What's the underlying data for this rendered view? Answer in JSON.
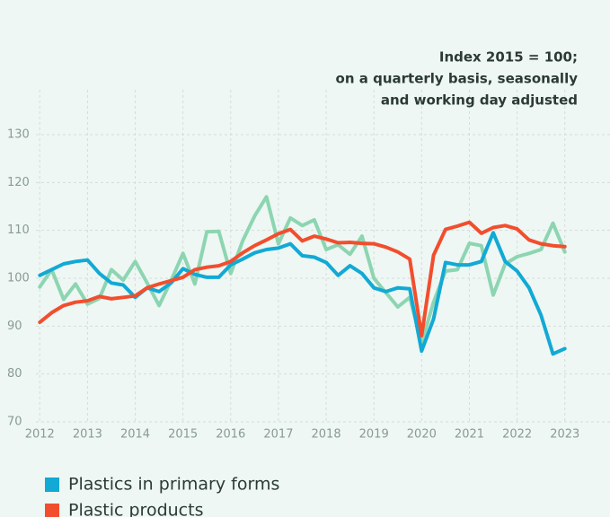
{
  "chart_data": {
    "type": "line",
    "annotation": [
      "Index 2015 = 100;",
      "on a quarterly basis, seasonally",
      "and working day adjusted"
    ],
    "x": [
      2012,
      2012.25,
      2012.5,
      2012.75,
      2013,
      2013.25,
      2013.5,
      2013.75,
      2014,
      2014.25,
      2014.5,
      2014.75,
      2015,
      2015.25,
      2015.5,
      2015.75,
      2016,
      2016.25,
      2016.5,
      2016.75,
      2017,
      2017.25,
      2017.5,
      2017.75,
      2018,
      2018.25,
      2018.5,
      2018.75,
      2019,
      2019.25,
      2019.5,
      2019.75,
      2020,
      2020.25,
      2020.5,
      2020.75,
      2021,
      2021.25,
      2021.5,
      2021.75,
      2022,
      2022.25,
      2022.5,
      2022.75,
      2023
    ],
    "series": [
      {
        "color": "#8dd5b2",
        "values": [
          98.2,
          101.8,
          95.6,
          98.8,
          94.6,
          95.8,
          101.8,
          99.6,
          103.5,
          99,
          94.3,
          99.5,
          105.2,
          98.8,
          109.7,
          109.8,
          101,
          107.8,
          113,
          117,
          107.2,
          112.6,
          111,
          112.2,
          106,
          107,
          105,
          108.8,
          100,
          97,
          94,
          96,
          86.5,
          95,
          101.5,
          101.8,
          107.3,
          106.8,
          96.5,
          103,
          104.5,
          105.2,
          106,
          111.5,
          105.5
        ]
      },
      {
        "name": "Plastics in primary forms",
        "color": "#12a9d5",
        "values": [
          100.6,
          101.8,
          103,
          103.5,
          103.8,
          101,
          99,
          98.6,
          96,
          98,
          97.2,
          99,
          102,
          100.8,
          100.2,
          100.2,
          102.8,
          104,
          105.3,
          106,
          106.3,
          107.2,
          104.7,
          104.4,
          103.3,
          100.6,
          102.6,
          101,
          98,
          97.2,
          98,
          97.8,
          84.8,
          91.5,
          103.3,
          102.8,
          102.8,
          103.5,
          109.5,
          103.5,
          101.5,
          98,
          92.3,
          84.2,
          85.3
        ]
      },
      {
        "name": "Plastic products",
        "color": "#f24e2e",
        "values": [
          90.8,
          92.8,
          94.3,
          95,
          95.3,
          96.2,
          95.7,
          96,
          96.3,
          98,
          98.8,
          99.5,
          100.2,
          101.8,
          102.3,
          102.6,
          103.5,
          105.3,
          106.8,
          108,
          109.3,
          110.2,
          107.8,
          108.8,
          108.2,
          107.4,
          107.5,
          107.3,
          107.2,
          106.5,
          105.5,
          104,
          88,
          104.8,
          110.2,
          110.9,
          111.7,
          109.4,
          110.6,
          111,
          110.3,
          108,
          107.2,
          106.8,
          106.6
        ]
      }
    ],
    "xlim": [
      2011.92,
      2023.4
    ],
    "xticks": [
      2012,
      2013,
      2014,
      2015,
      2016,
      2017,
      2018,
      2019,
      2020,
      2021,
      2022,
      2023
    ],
    "ylim": [
      70,
      130
    ],
    "yticks": [
      70,
      80,
      90,
      100,
      110,
      120,
      130
    ],
    "grid": true
  }
}
